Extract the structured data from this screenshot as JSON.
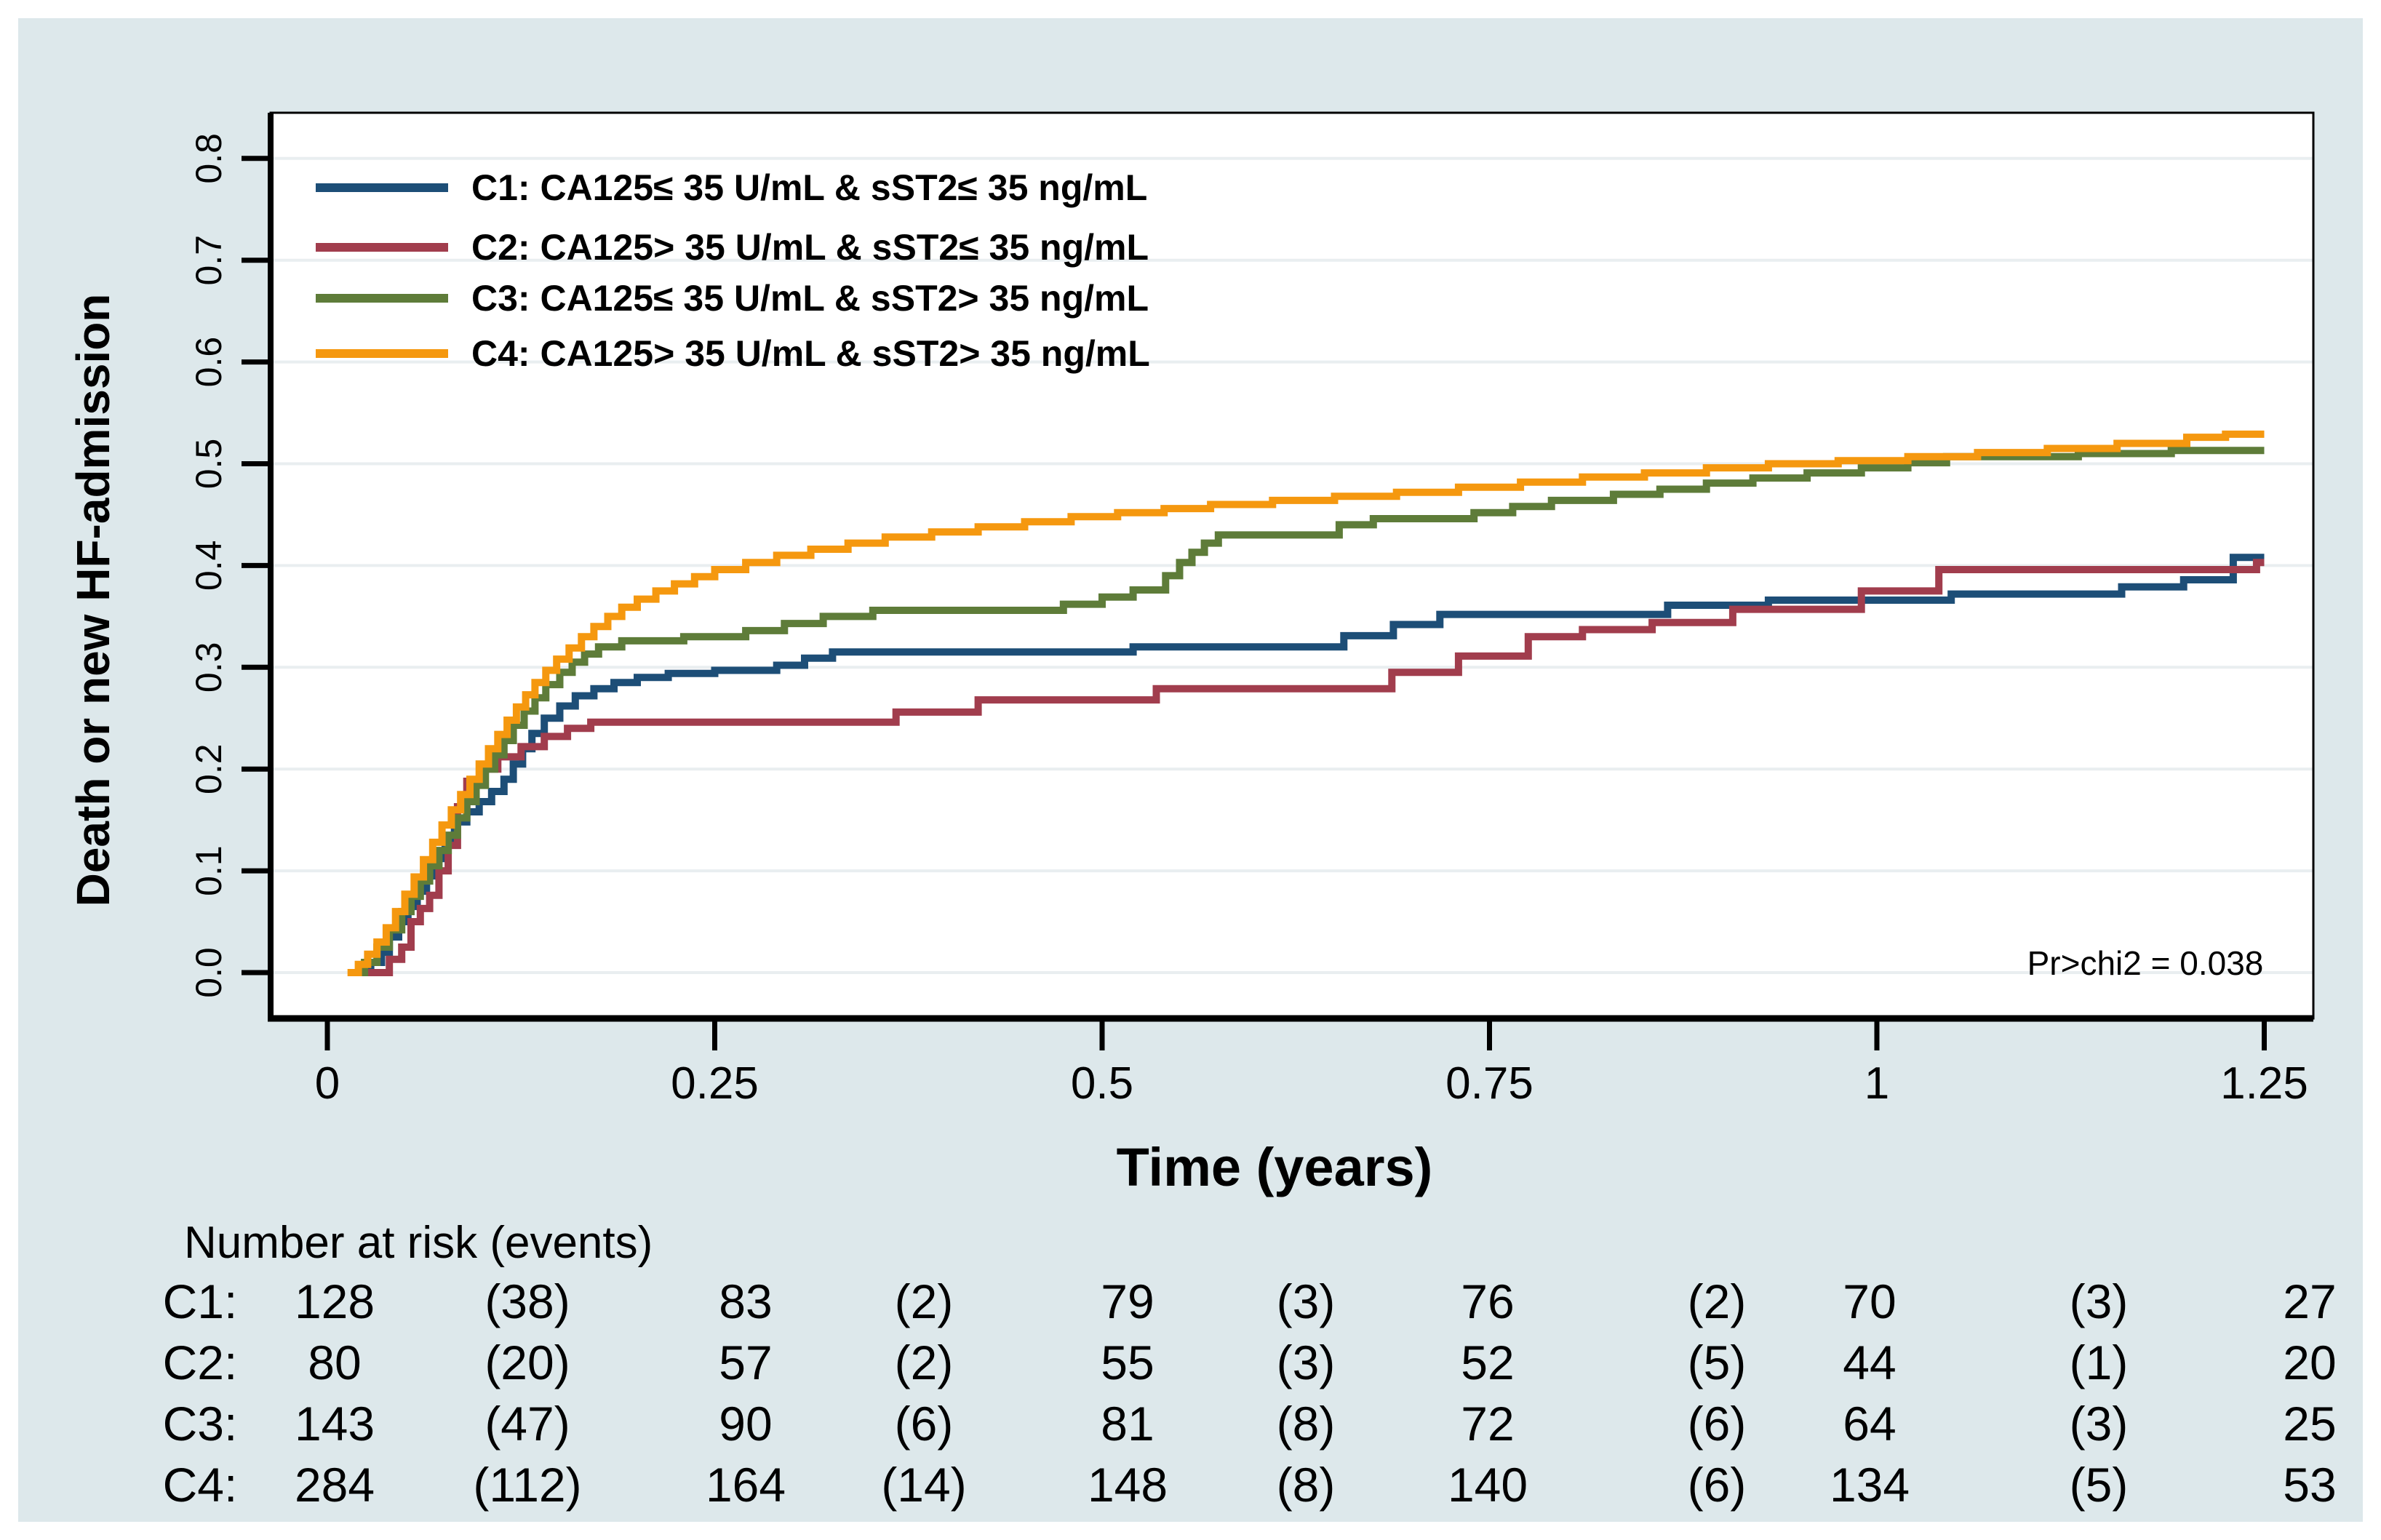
{
  "figure": {
    "background_color": "#dde8eb",
    "plot_background_color": "#ffffff",
    "grid_color": "#e9eef0",
    "frame_color": "#000000",
    "tick_color": "#000000"
  },
  "chart_data": {
    "type": "line",
    "subtype": "kaplan-meier-cumulative-incidence-steps",
    "title": "",
    "xlabel": "Time (years)",
    "ylabel": "Death or new HF-admission",
    "xlim": [
      0,
      1.25
    ],
    "ylim": [
      0,
      0.8
    ],
    "grid": "horizontal",
    "legend_position": "top-left-inside",
    "annotation": "Pr>chi2 = 0.038",
    "xticks": [
      {
        "value": 0,
        "label": "0"
      },
      {
        "value": 0.25,
        "label": "0.25"
      },
      {
        "value": 0.5,
        "label": "0.5"
      },
      {
        "value": 0.75,
        "label": "0.75"
      },
      {
        "value": 1,
        "label": "1"
      },
      {
        "value": 1.25,
        "label": "1.25"
      }
    ],
    "yticks": [
      {
        "value": 0.0,
        "label": "0.0"
      },
      {
        "value": 0.1,
        "label": "0.1"
      },
      {
        "value": 0.2,
        "label": "0.2"
      },
      {
        "value": 0.3,
        "label": "0.3"
      },
      {
        "value": 0.4,
        "label": "0.4"
      },
      {
        "value": 0.5,
        "label": "0.5"
      },
      {
        "value": 0.6,
        "label": "0.6"
      },
      {
        "value": 0.7,
        "label": "0.7"
      },
      {
        "value": 0.8,
        "label": "0.8"
      }
    ],
    "series": [
      {
        "name": "C1",
        "label": "C1: CA125≤ 35 U/mL & sST2≤ 35 ng/mL",
        "color": "#1d4e77",
        "points": [
          [
            0.02,
            0.0
          ],
          [
            0.028,
            0.01
          ],
          [
            0.035,
            0.02
          ],
          [
            0.04,
            0.035
          ],
          [
            0.046,
            0.05
          ],
          [
            0.052,
            0.065
          ],
          [
            0.058,
            0.08
          ],
          [
            0.064,
            0.095
          ],
          [
            0.07,
            0.112
          ],
          [
            0.076,
            0.128
          ],
          [
            0.082,
            0.148
          ],
          [
            0.09,
            0.158
          ],
          [
            0.098,
            0.168
          ],
          [
            0.106,
            0.178
          ],
          [
            0.114,
            0.19
          ],
          [
            0.12,
            0.205
          ],
          [
            0.126,
            0.22
          ],
          [
            0.132,
            0.235
          ],
          [
            0.14,
            0.25
          ],
          [
            0.15,
            0.262
          ],
          [
            0.16,
            0.272
          ],
          [
            0.172,
            0.279
          ],
          [
            0.185,
            0.285
          ],
          [
            0.2,
            0.29
          ],
          [
            0.22,
            0.294
          ],
          [
            0.25,
            0.297
          ],
          [
            0.29,
            0.302
          ],
          [
            0.308,
            0.309
          ],
          [
            0.326,
            0.315
          ],
          [
            0.52,
            0.32
          ],
          [
            0.656,
            0.331
          ],
          [
            0.688,
            0.342
          ],
          [
            0.718,
            0.352
          ],
          [
            0.865,
            0.361
          ],
          [
            0.93,
            0.366
          ],
          [
            1.048,
            0.372
          ],
          [
            1.158,
            0.379
          ],
          [
            1.198,
            0.386
          ],
          [
            1.23,
            0.408
          ]
        ]
      },
      {
        "name": "C2",
        "label": "C2: CA125> 35 U/mL & sST2≤ 35 ng/mL",
        "color": "#a13d4d",
        "points": [
          [
            0.026,
            0.0
          ],
          [
            0.04,
            0.013
          ],
          [
            0.048,
            0.025
          ],
          [
            0.054,
            0.05
          ],
          [
            0.06,
            0.063
          ],
          [
            0.066,
            0.076
          ],
          [
            0.072,
            0.1
          ],
          [
            0.078,
            0.125
          ],
          [
            0.084,
            0.163
          ],
          [
            0.09,
            0.188
          ],
          [
            0.1,
            0.2
          ],
          [
            0.11,
            0.212
          ],
          [
            0.125,
            0.222
          ],
          [
            0.14,
            0.232
          ],
          [
            0.155,
            0.24
          ],
          [
            0.17,
            0.246
          ],
          [
            0.367,
            0.256
          ],
          [
            0.42,
            0.268
          ],
          [
            0.535,
            0.279
          ],
          [
            0.687,
            0.295
          ],
          [
            0.73,
            0.311
          ],
          [
            0.775,
            0.33
          ],
          [
            0.81,
            0.337
          ],
          [
            0.855,
            0.344
          ],
          [
            0.907,
            0.357
          ],
          [
            0.99,
            0.375
          ],
          [
            1.04,
            0.396
          ],
          [
            1.245,
            0.403
          ]
        ]
      },
      {
        "name": "C3",
        "label": "C3: CA125≤ 35 U/mL & sST2> 35 ng/mL",
        "color": "#5e7c39",
        "points": [
          [
            0.016,
            0.0
          ],
          [
            0.024,
            0.01
          ],
          [
            0.032,
            0.025
          ],
          [
            0.04,
            0.042
          ],
          [
            0.048,
            0.06
          ],
          [
            0.054,
            0.075
          ],
          [
            0.06,
            0.09
          ],
          [
            0.066,
            0.105
          ],
          [
            0.072,
            0.12
          ],
          [
            0.078,
            0.135
          ],
          [
            0.084,
            0.152
          ],
          [
            0.09,
            0.168
          ],
          [
            0.096,
            0.184
          ],
          [
            0.102,
            0.2
          ],
          [
            0.108,
            0.214
          ],
          [
            0.114,
            0.228
          ],
          [
            0.12,
            0.243
          ],
          [
            0.127,
            0.257
          ],
          [
            0.134,
            0.27
          ],
          [
            0.141,
            0.283
          ],
          [
            0.15,
            0.295
          ],
          [
            0.158,
            0.305
          ],
          [
            0.166,
            0.313
          ],
          [
            0.175,
            0.32
          ],
          [
            0.19,
            0.326
          ],
          [
            0.23,
            0.33
          ],
          [
            0.27,
            0.336
          ],
          [
            0.295,
            0.343
          ],
          [
            0.32,
            0.35
          ],
          [
            0.352,
            0.356
          ],
          [
            0.475,
            0.362
          ],
          [
            0.5,
            0.369
          ],
          [
            0.52,
            0.376
          ],
          [
            0.541,
            0.39
          ],
          [
            0.55,
            0.403
          ],
          [
            0.558,
            0.413
          ],
          [
            0.566,
            0.422
          ],
          [
            0.575,
            0.43
          ],
          [
            0.653,
            0.44
          ],
          [
            0.675,
            0.446
          ],
          [
            0.74,
            0.452
          ],
          [
            0.765,
            0.458
          ],
          [
            0.79,
            0.464
          ],
          [
            0.83,
            0.47
          ],
          [
            0.86,
            0.475
          ],
          [
            0.89,
            0.481
          ],
          [
            0.92,
            0.486
          ],
          [
            0.955,
            0.491
          ],
          [
            0.99,
            0.496
          ],
          [
            1.02,
            0.501
          ],
          [
            1.045,
            0.507
          ],
          [
            1.13,
            0.51
          ],
          [
            1.19,
            0.513
          ]
        ]
      },
      {
        "name": "C4",
        "label": "C4: CA125> 35 U/mL & sST2> 35 ng/mL",
        "color": "#f5980f",
        "points": [
          [
            0.013,
            0.0
          ],
          [
            0.02,
            0.008
          ],
          [
            0.026,
            0.018
          ],
          [
            0.032,
            0.03
          ],
          [
            0.038,
            0.044
          ],
          [
            0.044,
            0.06
          ],
          [
            0.05,
            0.077
          ],
          [
            0.056,
            0.094
          ],
          [
            0.062,
            0.111
          ],
          [
            0.068,
            0.128
          ],
          [
            0.074,
            0.145
          ],
          [
            0.08,
            0.16
          ],
          [
            0.086,
            0.175
          ],
          [
            0.092,
            0.19
          ],
          [
            0.098,
            0.205
          ],
          [
            0.104,
            0.22
          ],
          [
            0.11,
            0.234
          ],
          [
            0.116,
            0.248
          ],
          [
            0.122,
            0.261
          ],
          [
            0.128,
            0.273
          ],
          [
            0.134,
            0.285
          ],
          [
            0.141,
            0.297
          ],
          [
            0.148,
            0.308
          ],
          [
            0.156,
            0.319
          ],
          [
            0.164,
            0.33
          ],
          [
            0.172,
            0.34
          ],
          [
            0.181,
            0.35
          ],
          [
            0.19,
            0.359
          ],
          [
            0.2,
            0.367
          ],
          [
            0.212,
            0.375
          ],
          [
            0.224,
            0.382
          ],
          [
            0.237,
            0.389
          ],
          [
            0.25,
            0.396
          ],
          [
            0.27,
            0.403
          ],
          [
            0.29,
            0.41
          ],
          [
            0.312,
            0.416
          ],
          [
            0.336,
            0.422
          ],
          [
            0.36,
            0.428
          ],
          [
            0.39,
            0.433
          ],
          [
            0.42,
            0.438
          ],
          [
            0.45,
            0.443
          ],
          [
            0.48,
            0.448
          ],
          [
            0.51,
            0.452
          ],
          [
            0.54,
            0.456
          ],
          [
            0.57,
            0.46
          ],
          [
            0.61,
            0.464
          ],
          [
            0.65,
            0.468
          ],
          [
            0.69,
            0.472
          ],
          [
            0.73,
            0.477
          ],
          [
            0.77,
            0.482
          ],
          [
            0.81,
            0.487
          ],
          [
            0.85,
            0.491
          ],
          [
            0.89,
            0.496
          ],
          [
            0.93,
            0.5
          ],
          [
            0.975,
            0.503
          ],
          [
            1.02,
            0.507
          ],
          [
            1.065,
            0.511
          ],
          [
            1.11,
            0.515
          ],
          [
            1.155,
            0.52
          ],
          [
            1.2,
            0.526
          ],
          [
            1.225,
            0.529
          ]
        ]
      }
    ]
  },
  "risk_table": {
    "header": "Number at risk (events)",
    "rows": [
      {
        "label": "C1:",
        "cells": [
          "128",
          "(38)",
          "83",
          "(2)",
          "79",
          "(3)",
          "76",
          "(2)",
          "70",
          "(3)",
          "27"
        ]
      },
      {
        "label": "C2:",
        "cells": [
          "80",
          "(20)",
          "57",
          "(2)",
          "55",
          "(3)",
          "52",
          "(5)",
          "44",
          "(1)",
          "20"
        ]
      },
      {
        "label": "C3:",
        "cells": [
          "143",
          "(47)",
          "90",
          "(6)",
          "81",
          "(8)",
          "72",
          "(6)",
          "64",
          "(3)",
          "25"
        ]
      },
      {
        "label": "C4:",
        "cells": [
          "284",
          "(112)",
          "164",
          "(14)",
          "148",
          "(8)",
          "140",
          "(6)",
          "134",
          "(5)",
          "53"
        ]
      }
    ]
  }
}
